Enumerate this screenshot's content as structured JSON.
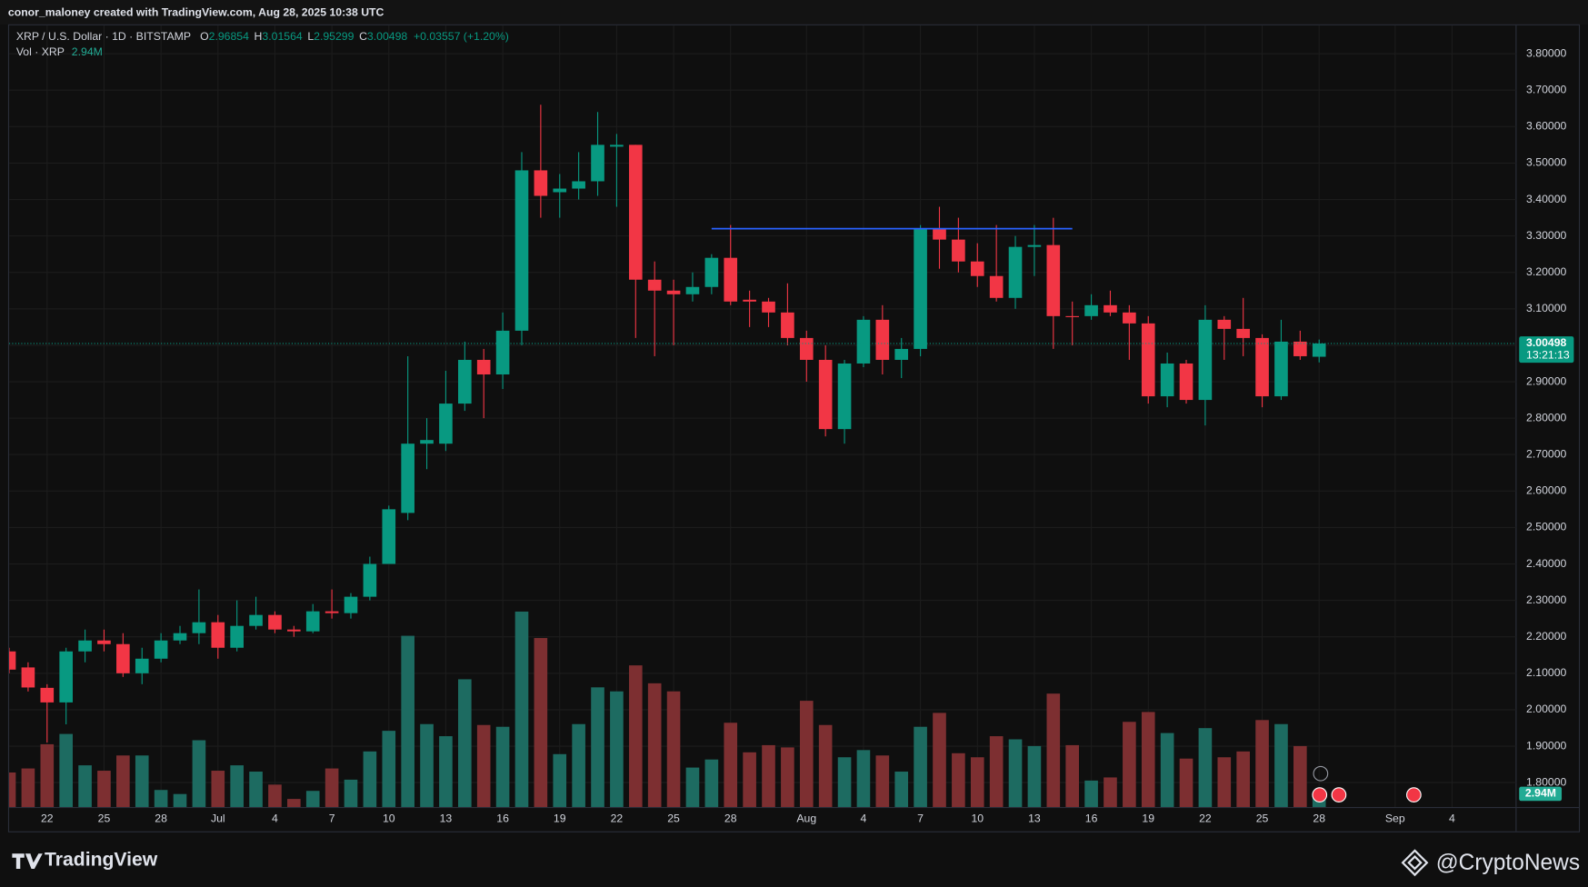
{
  "header": "conor_maloney created with TradingView.com, Aug 28, 2025 10:38 UTC",
  "branding": [
    "TradingView",
    "@CryptoNews"
  ],
  "chart_data": {
    "type": "candlestick",
    "title": "XRP / U.S. Dollar · 1D · BITSTAMP",
    "ohlc_labels": [
      "O",
      "H",
      "L",
      "C"
    ],
    "change_label": "+0.03557 (+1.20%)",
    "countdown": "13:21:13",
    "up_color": "#089981",
    "down_color": "#f23645",
    "x": [
      "2025-06-20",
      "2025-06-21",
      "2025-06-22",
      "2025-06-23",
      "2025-06-24",
      "2025-06-25",
      "2025-06-26",
      "2025-06-27",
      "2025-06-28",
      "2025-06-29",
      "2025-06-30",
      "2025-07-01",
      "2025-07-02",
      "2025-07-03",
      "2025-07-04",
      "2025-07-05",
      "2025-07-06",
      "2025-07-07",
      "2025-07-08",
      "2025-07-09",
      "2025-07-10",
      "2025-07-11",
      "2025-07-12",
      "2025-07-13",
      "2025-07-14",
      "2025-07-15",
      "2025-07-16",
      "2025-07-17",
      "2025-07-18",
      "2025-07-19",
      "2025-07-20",
      "2025-07-21",
      "2025-07-22",
      "2025-07-23",
      "2025-07-24",
      "2025-07-25",
      "2025-07-26",
      "2025-07-27",
      "2025-07-28",
      "2025-07-29",
      "2025-07-30",
      "2025-07-31",
      "2025-08-01",
      "2025-08-02",
      "2025-08-03",
      "2025-08-04",
      "2025-08-05",
      "2025-08-06",
      "2025-08-07",
      "2025-08-08",
      "2025-08-09",
      "2025-08-10",
      "2025-08-11",
      "2025-08-12",
      "2025-08-13",
      "2025-08-14",
      "2025-08-15",
      "2025-08-16",
      "2025-08-17",
      "2025-08-18",
      "2025-08-19",
      "2025-08-20",
      "2025-08-21",
      "2025-08-22",
      "2025-08-23",
      "2025-08-24",
      "2025-08-25",
      "2025-08-26",
      "2025-08-27",
      "2025-08-28"
    ],
    "open": [
      2.16,
      2.116,
      2.06,
      2.02,
      2.16,
      2.19,
      2.18,
      2.1,
      2.14,
      2.19,
      2.21,
      2.24,
      2.17,
      2.23,
      2.26,
      2.22,
      2.215,
      2.27,
      2.265,
      2.31,
      2.4,
      2.54,
      2.73,
      2.73,
      2.84,
      2.96,
      2.92,
      3.04,
      3.48,
      3.42,
      3.43,
      3.45,
      3.545,
      3.55,
      3.18,
      3.15,
      3.14,
      3.16,
      3.24,
      3.125,
      3.12,
      3.09,
      3.02,
      2.96,
      2.77,
      2.95,
      3.07,
      2.96,
      2.99,
      3.32,
      3.29,
      3.23,
      3.19,
      3.13,
      3.27,
      3.275,
      3.08,
      3.08,
      3.11,
      3.09,
      3.06,
      2.86,
      2.95,
      2.85,
      3.07,
      3.045,
      3.02,
      2.86,
      3.01,
      2.96854
    ],
    "high": [
      2.17,
      2.13,
      2.07,
      2.17,
      2.22,
      2.22,
      2.21,
      2.17,
      2.21,
      2.23,
      2.33,
      2.26,
      2.3,
      2.31,
      2.27,
      2.23,
      2.29,
      2.33,
      2.32,
      2.42,
      2.56,
      2.97,
      2.8,
      2.93,
      3.01,
      2.99,
      3.09,
      3.53,
      3.66,
      3.47,
      3.53,
      3.64,
      3.58,
      3.55,
      3.23,
      3.18,
      3.2,
      3.25,
      3.33,
      3.15,
      3.13,
      3.17,
      3.04,
      3.0,
      2.96,
      3.08,
      3.11,
      3.02,
      3.33,
      3.38,
      3.35,
      3.28,
      3.33,
      3.3,
      3.33,
      3.35,
      3.12,
      3.14,
      3.15,
      3.11,
      3.08,
      2.98,
      2.96,
      3.11,
      3.08,
      3.13,
      3.03,
      3.07,
      3.04,
      3.01564
    ],
    "low": [
      2.1,
      2.05,
      1.91,
      1.96,
      2.13,
      2.16,
      2.09,
      2.07,
      2.13,
      2.18,
      2.18,
      2.14,
      2.16,
      2.22,
      2.21,
      2.2,
      2.21,
      2.25,
      2.25,
      2.3,
      2.4,
      2.52,
      2.66,
      2.71,
      2.82,
      2.8,
      2.88,
      3.0,
      3.35,
      3.35,
      3.4,
      3.41,
      3.38,
      3.02,
      2.97,
      3.0,
      3.12,
      3.14,
      3.11,
      3.05,
      3.05,
      3.0,
      2.9,
      2.75,
      2.73,
      2.94,
      2.92,
      2.91,
      2.97,
      3.21,
      3.2,
      3.16,
      3.12,
      3.1,
      3.19,
      2.99,
      3.0,
      3.07,
      3.08,
      2.96,
      2.84,
      2.83,
      2.84,
      2.78,
      2.96,
      2.97,
      2.83,
      2.85,
      2.96,
      2.95299
    ],
    "close": [
      2.11,
      2.061,
      2.02,
      2.16,
      2.19,
      2.18,
      2.1,
      2.14,
      2.19,
      2.21,
      2.24,
      2.17,
      2.23,
      2.26,
      2.22,
      2.215,
      2.27,
      2.265,
      2.31,
      2.4,
      2.55,
      2.73,
      2.74,
      2.84,
      2.96,
      2.92,
      3.04,
      3.48,
      3.41,
      3.43,
      3.45,
      3.55,
      3.55,
      3.18,
      3.15,
      3.14,
      3.16,
      3.24,
      3.12,
      3.12,
      3.09,
      3.02,
      2.96,
      2.77,
      2.95,
      3.07,
      2.96,
      2.99,
      3.32,
      3.29,
      3.23,
      3.19,
      3.13,
      3.27,
      3.275,
      3.08,
      3.078,
      3.11,
      3.09,
      3.06,
      2.86,
      2.95,
      2.85,
      3.07,
      3.045,
      3.02,
      2.86,
      3.01,
      2.97,
      3.00498
    ],
    "volume": {
      "name": "Vol · XRP",
      "current_label": "2.94M",
      "up_color": "#1d6b61",
      "down_color": "#7d2f31",
      "values": [
        7.7,
        8.6,
        14.0,
        16.3,
        9.3,
        8.1,
        11.5,
        11.5,
        3.8,
        2.9,
        14.9,
        8.1,
        9.3,
        7.9,
        5.0,
        1.8,
        3.6,
        8.6,
        6.1,
        12.4,
        17.0,
        38.2,
        18.5,
        15.8,
        28.5,
        18.3,
        17.9,
        43.6,
        37.7,
        11.8,
        18.5,
        26.7,
        25.8,
        31.6,
        27.6,
        25.8,
        8.8,
        10.6,
        18.8,
        12.2,
        13.8,
        13.3,
        23.7,
        18.3,
        11.1,
        12.7,
        11.5,
        7.9,
        17.9,
        21.0,
        12.0,
        11.1,
        15.8,
        15.1,
        13.6,
        25.3,
        13.8,
        5.9,
        6.6,
        19.0,
        21.2,
        16.5,
        10.8,
        17.6,
        11.1,
        12.4,
        19.4,
        18.5,
        13.6,
        2.94
      ]
    },
    "level": {
      "value": 3.32,
      "from": "2025-07-27",
      "to": "2025-08-15",
      "color": "#2962ff"
    },
    "xlim": [
      "2025-06-20",
      "2025-09-07"
    ],
    "xticks": [
      {
        "value": "2025-06-22",
        "label": "22"
      },
      {
        "value": "2025-06-25",
        "label": "25"
      },
      {
        "value": "2025-06-28",
        "label": "28"
      },
      {
        "value": "2025-07-01",
        "label": "Jul"
      },
      {
        "value": "2025-07-04",
        "label": "4"
      },
      {
        "value": "2025-07-07",
        "label": "7"
      },
      {
        "value": "2025-07-10",
        "label": "10"
      },
      {
        "value": "2025-07-13",
        "label": "13"
      },
      {
        "value": "2025-07-16",
        "label": "16"
      },
      {
        "value": "2025-07-19",
        "label": "19"
      },
      {
        "value": "2025-07-22",
        "label": "22"
      },
      {
        "value": "2025-07-25",
        "label": "25"
      },
      {
        "value": "2025-07-28",
        "label": "28"
      },
      {
        "value": "2025-08-01",
        "label": "Aug"
      },
      {
        "value": "2025-08-04",
        "label": "4"
      },
      {
        "value": "2025-08-07",
        "label": "7"
      },
      {
        "value": "2025-08-10",
        "label": "10"
      },
      {
        "value": "2025-08-13",
        "label": "13"
      },
      {
        "value": "2025-08-16",
        "label": "16"
      },
      {
        "value": "2025-08-19",
        "label": "19"
      },
      {
        "value": "2025-08-22",
        "label": "22"
      },
      {
        "value": "2025-08-25",
        "label": "25"
      },
      {
        "value": "2025-08-28",
        "label": "28"
      },
      {
        "value": "2025-09-01",
        "label": "Sep"
      },
      {
        "value": "2025-09-04",
        "label": "4"
      }
    ],
    "ylim": [
      1.733,
      3.878
    ],
    "yticks": [
      {
        "value": 1.8,
        "label": "1.80000"
      },
      {
        "value": 1.9,
        "label": "1.90000"
      },
      {
        "value": 2.0,
        "label": "2.00000"
      },
      {
        "value": 2.1,
        "label": "2.10000"
      },
      {
        "value": 2.2,
        "label": "2.20000"
      },
      {
        "value": 2.3,
        "label": "2.30000"
      },
      {
        "value": 2.4,
        "label": "2.40000"
      },
      {
        "value": 2.5,
        "label": "2.50000"
      },
      {
        "value": 2.6,
        "label": "2.60000"
      },
      {
        "value": 2.7,
        "label": "2.70000"
      },
      {
        "value": 2.8,
        "label": "2.80000"
      },
      {
        "value": 2.9,
        "label": "2.90000"
      },
      {
        "value": 3.0,
        "label": "3.00000"
      },
      {
        "value": 3.1,
        "label": "3.10000"
      },
      {
        "value": 3.2,
        "label": "3.20000"
      },
      {
        "value": 3.3,
        "label": "3.30000"
      },
      {
        "value": 3.4,
        "label": "3.40000"
      },
      {
        "value": 3.5,
        "label": "3.50000"
      },
      {
        "value": 3.6,
        "label": "3.60000"
      },
      {
        "value": 3.7,
        "label": "3.70000"
      },
      {
        "value": 3.8,
        "label": "3.80000"
      }
    ],
    "grid": true
  }
}
